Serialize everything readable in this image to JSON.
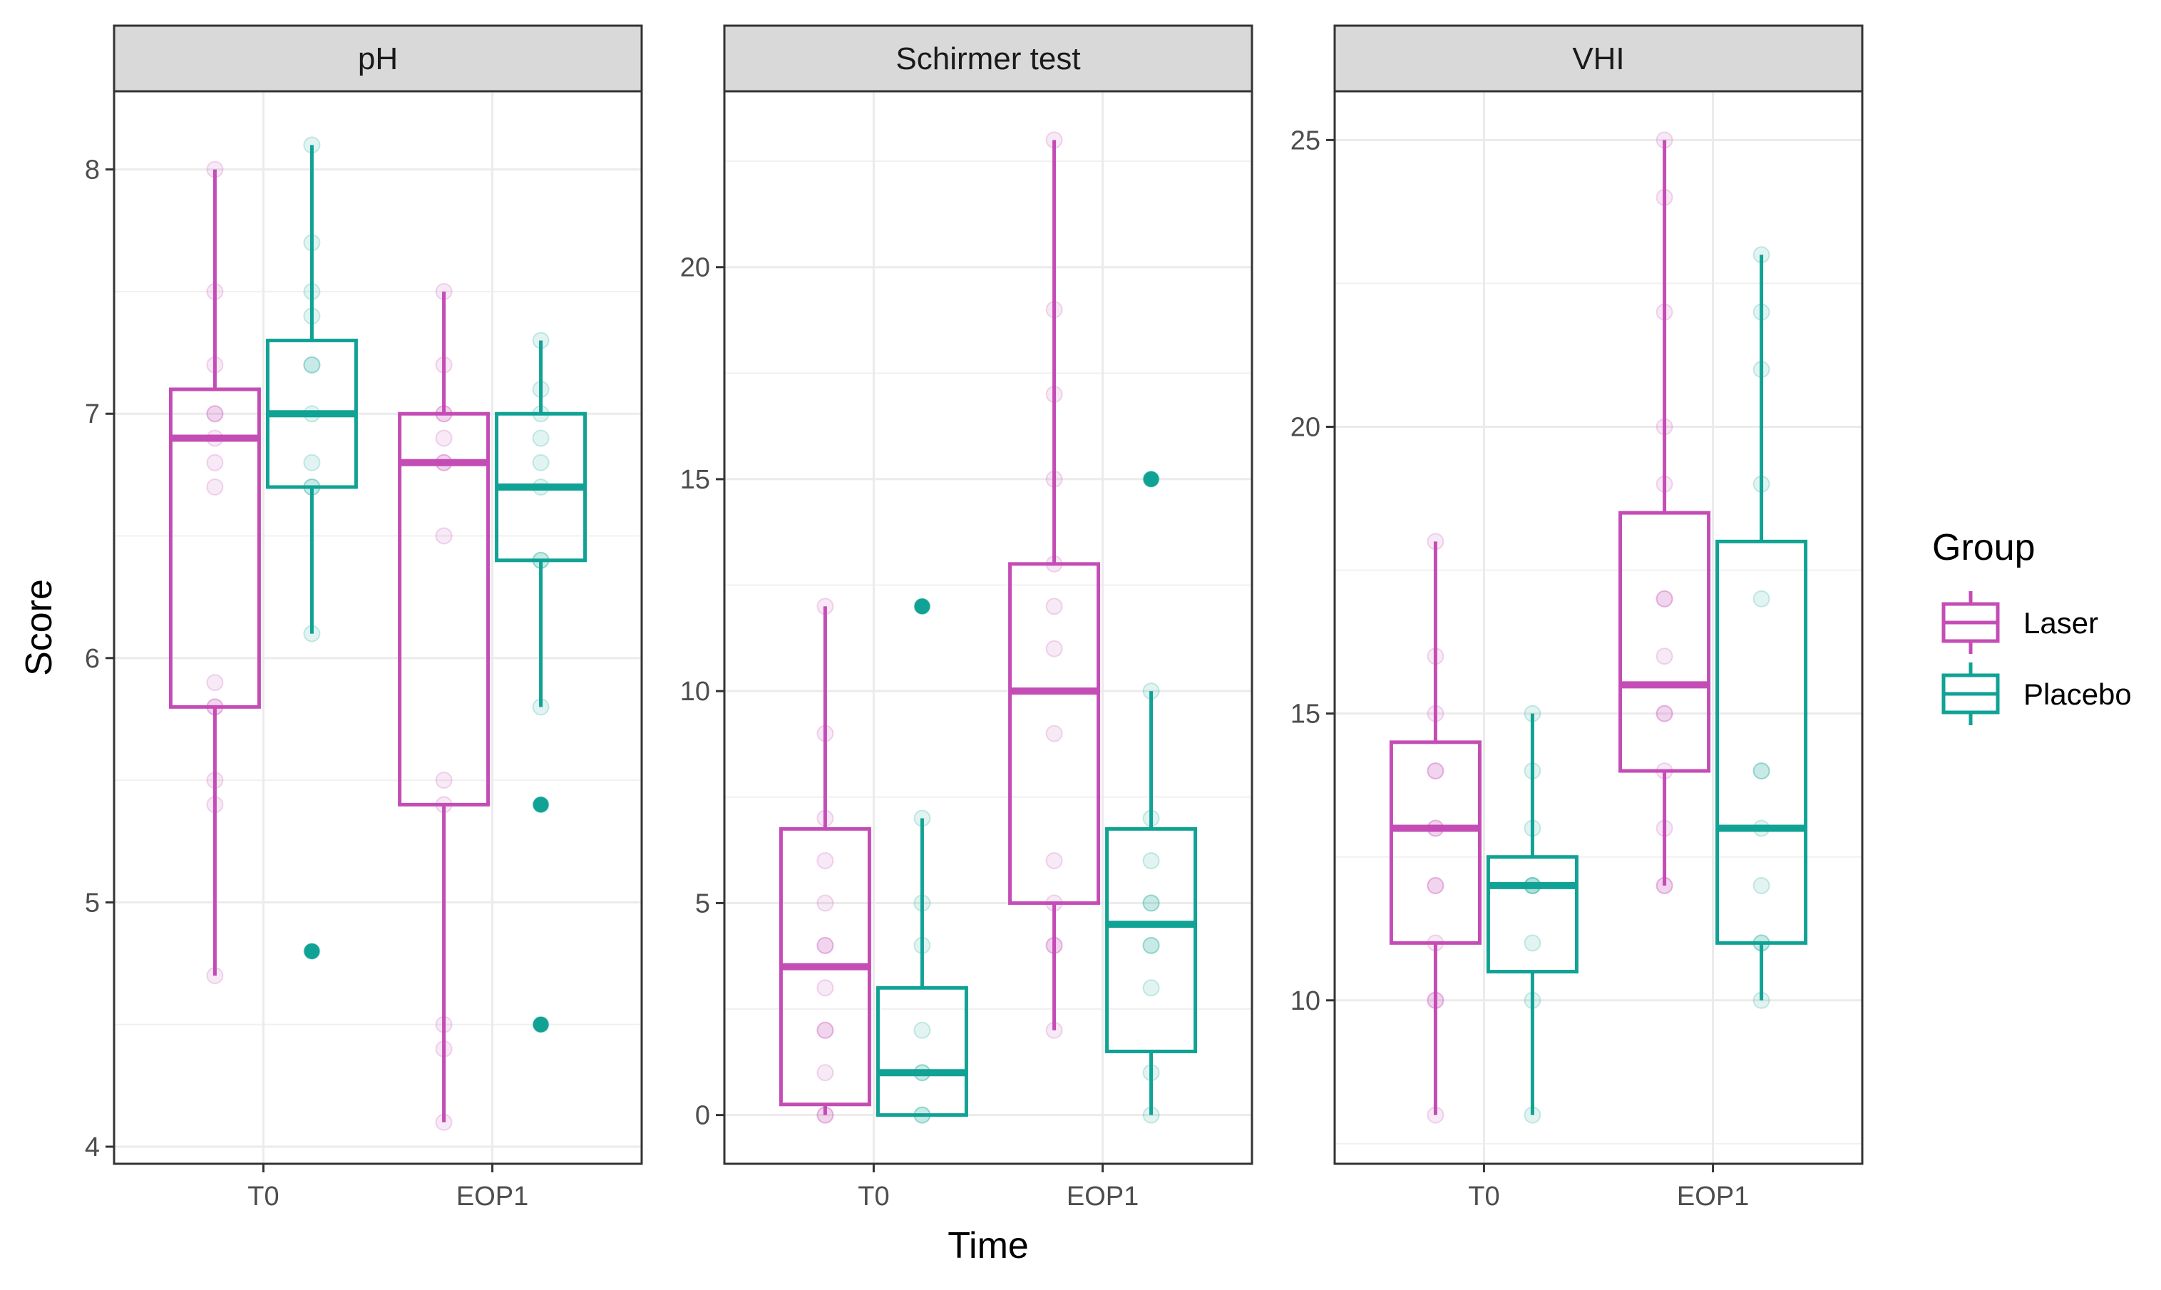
{
  "chart_data": {
    "type": "boxplot",
    "xlabel": "Time",
    "ylabel": "Score",
    "categories": [
      "T0",
      "EOP1"
    ],
    "legend": {
      "title": "Group",
      "position": "right",
      "items": [
        {
          "name": "Laser",
          "color": "#C44DB5"
        },
        {
          "name": "Placebo",
          "color": "#10A294"
        }
      ]
    },
    "facets": [
      {
        "title": "pH",
        "ylim": [
          3.93,
          8.32
        ],
        "ticks": [
          4,
          5,
          6,
          7,
          8
        ],
        "groups": [
          {
            "category": "T0",
            "series": "Laser",
            "q1": 5.8,
            "median": 6.9,
            "q3": 7.1,
            "lower": 4.7,
            "upper": 8.0,
            "outliers": [],
            "points": [
              8.0,
              7.5,
              7.2,
              7.0,
              7.0,
              6.9,
              6.8,
              6.7,
              5.9,
              5.8,
              5.8,
              5.5,
              5.4,
              4.7
            ]
          },
          {
            "category": "T0",
            "series": "Placebo",
            "q1": 6.7,
            "median": 7.0,
            "q3": 7.3,
            "lower": 6.1,
            "upper": 8.1,
            "outliers": [
              4.8
            ],
            "points": [
              8.1,
              7.7,
              7.5,
              7.4,
              7.2,
              7.2,
              7.0,
              6.8,
              6.7,
              6.7,
              6.1,
              4.8
            ]
          },
          {
            "category": "EOP1",
            "series": "Laser",
            "q1": 5.4,
            "median": 6.8,
            "q3": 7.0,
            "lower": 4.1,
            "upper": 7.5,
            "outliers": [],
            "points": [
              7.5,
              7.2,
              7.0,
              7.0,
              6.9,
              6.8,
              6.8,
              6.5,
              5.5,
              5.4,
              4.5,
              4.4,
              4.1
            ]
          },
          {
            "category": "EOP1",
            "series": "Placebo",
            "q1": 6.4,
            "median": 6.7,
            "q3": 7.0,
            "lower": 5.8,
            "upper": 7.3,
            "outliers": [
              5.4,
              4.5
            ],
            "points": [
              7.3,
              7.1,
              7.0,
              6.9,
              6.8,
              6.7,
              6.4,
              6.4,
              5.8,
              5.4,
              4.5
            ]
          }
        ]
      },
      {
        "title": "Schirmer test",
        "ylim": [
          -1.15,
          24.15
        ],
        "ticks": [
          0,
          5,
          10,
          15,
          20
        ],
        "groups": [
          {
            "category": "T0",
            "series": "Laser",
            "q1": 0.25,
            "median": 3.5,
            "q3": 6.75,
            "lower": 0,
            "upper": 12,
            "outliers": [],
            "points": [
              12,
              9,
              7,
              6,
              5,
              4,
              4,
              3,
              2,
              2,
              1,
              0,
              0
            ]
          },
          {
            "category": "T0",
            "series": "Placebo",
            "q1": 0,
            "median": 1,
            "q3": 3,
            "lower": 0,
            "upper": 7,
            "outliers": [
              12
            ],
            "points": [
              12,
              7,
              5,
              4,
              2,
              1,
              1,
              0,
              0
            ]
          },
          {
            "category": "EOP1",
            "series": "Laser",
            "q1": 5,
            "median": 10,
            "q3": 13,
            "lower": 2,
            "upper": 23,
            "outliers": [],
            "points": [
              23,
              19,
              17,
              15,
              13,
              12,
              11,
              9,
              6,
              5,
              4,
              4,
              2
            ]
          },
          {
            "category": "EOP1",
            "series": "Placebo",
            "q1": 1.5,
            "median": 4.5,
            "q3": 6.75,
            "lower": 0,
            "upper": 10,
            "outliers": [
              15
            ],
            "points": [
              15,
              10,
              7,
              6,
              5,
              5,
              4,
              4,
              3,
              1,
              0
            ]
          }
        ]
      },
      {
        "title": "VHI",
        "ylim": [
          7.15,
          25.85
        ],
        "ticks": [
          10,
          15,
          20,
          25
        ],
        "groups": [
          {
            "category": "T0",
            "series": "Laser",
            "q1": 11,
            "median": 13,
            "q3": 14.5,
            "lower": 8,
            "upper": 18,
            "outliers": [],
            "points": [
              18,
              16,
              15,
              14,
              14,
              13,
              13,
              12,
              12,
              11,
              10,
              10,
              8
            ]
          },
          {
            "category": "T0",
            "series": "Placebo",
            "q1": 10.5,
            "median": 12,
            "q3": 12.5,
            "lower": 8,
            "upper": 15,
            "outliers": [],
            "points": [
              15,
              14,
              13,
              12,
              12,
              12,
              11,
              10,
              8
            ]
          },
          {
            "category": "EOP1",
            "series": "Laser",
            "q1": 14,
            "median": 15.5,
            "q3": 18.5,
            "lower": 12,
            "upper": 25,
            "outliers": [],
            "points": [
              25,
              24,
              22,
              20,
              19,
              17,
              17,
              16,
              15,
              15,
              14,
              13,
              12,
              12
            ]
          },
          {
            "category": "EOP1",
            "series": "Placebo",
            "q1": 11,
            "median": 13,
            "q3": 18,
            "lower": 10,
            "upper": 23,
            "outliers": [],
            "points": [
              23,
              22,
              21,
              19,
              17,
              14,
              14,
              13,
              12,
              11,
              11,
              10
            ]
          }
        ]
      }
    ]
  }
}
